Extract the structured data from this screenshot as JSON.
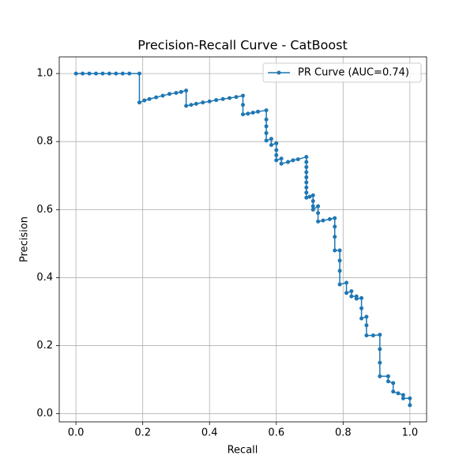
{
  "chart_data": {
    "type": "line",
    "title": "Precision-Recall Curve - CatBoost",
    "x_label": "Recall",
    "y_label": "Precision",
    "xlim": [
      -0.05,
      1.05
    ],
    "ylim": [
      -0.024,
      1.049
    ],
    "xticks": [
      {
        "value": 0,
        "label": "0.0"
      },
      0.2,
      0.4,
      0.6,
      0.8,
      {
        "value": 1,
        "label": "1.0"
      }
    ],
    "yticks": [
      {
        "value": 0,
        "label": "0.0"
      },
      0.2,
      0.4,
      0.6,
      0.8,
      {
        "value": 1,
        "label": "1.0"
      }
    ],
    "grid": true,
    "legend": "upper right",
    "series": [
      {
        "name": "PR Curve (AUC=0.74)",
        "color": "#1f77b4",
        "x": [
          0,
          0.02,
          0.04,
          0.06,
          0.08,
          0.1,
          0.12,
          0.14,
          0.16,
          0.19,
          0.19,
          0.205,
          0.22,
          0.24,
          0.26,
          0.28,
          0.3,
          0.315,
          0.33,
          0.33,
          0.345,
          0.36,
          0.38,
          0.4,
          0.42,
          0.44,
          0.46,
          0.48,
          0.5,
          0.5,
          0.5,
          0.515,
          0.53,
          0.545,
          0.57,
          0.57,
          0.57,
          0.57,
          0.57,
          0.585,
          0.585,
          0.6,
          0.6,
          0.6,
          0.6,
          0.615,
          0.615,
          0.635,
          0.65,
          0.665,
          0.69,
          0.69,
          0.69,
          0.69,
          0.69,
          0.69,
          0.69,
          0.69,
          0.69,
          0.7,
          0.71,
          0.71,
          0.71,
          0.71,
          0.725,
          0.725,
          0.725,
          0.74,
          0.76,
          0.775,
          0.775,
          0.775,
          0.775,
          0.79,
          0.79,
          0.79,
          0.79,
          0.81,
          0.81,
          0.825,
          0.825,
          0.84,
          0.84,
          0.855,
          0.855,
          0.855,
          0.87,
          0.87,
          0.87,
          0.89,
          0.91,
          0.91,
          0.91,
          0.91,
          0.935,
          0.935,
          0.95,
          0.95,
          0.965,
          0.98,
          0.98,
          1.0,
          1.0
        ],
        "values": [
          1,
          1,
          1,
          1,
          1,
          1,
          1,
          1,
          1,
          1,
          0.915,
          0.921,
          0.925,
          0.93,
          0.935,
          0.94,
          0.943,
          0.946,
          0.95,
          0.905,
          0.908,
          0.911,
          0.915,
          0.918,
          0.922,
          0.925,
          0.928,
          0.931,
          0.935,
          0.908,
          0.88,
          0.882,
          0.885,
          0.888,
          0.892,
          0.865,
          0.845,
          0.825,
          0.803,
          0.808,
          0.79,
          0.795,
          0.775,
          0.76,
          0.745,
          0.75,
          0.735,
          0.74,
          0.745,
          0.748,
          0.755,
          0.74,
          0.725,
          0.71,
          0.695,
          0.68,
          0.665,
          0.65,
          0.635,
          0.638,
          0.642,
          0.625,
          0.61,
          0.6,
          0.61,
          0.59,
          0.565,
          0.568,
          0.572,
          0.575,
          0.55,
          0.52,
          0.48,
          0.48,
          0.45,
          0.42,
          0.38,
          0.385,
          0.355,
          0.36,
          0.345,
          0.345,
          0.338,
          0.34,
          0.31,
          0.28,
          0.285,
          0.26,
          0.23,
          0.23,
          0.232,
          0.19,
          0.15,
          0.11,
          0.11,
          0.095,
          0.09,
          0.065,
          0.06,
          0.055,
          0.045,
          0.045,
          0.025
        ]
      }
    ]
  }
}
